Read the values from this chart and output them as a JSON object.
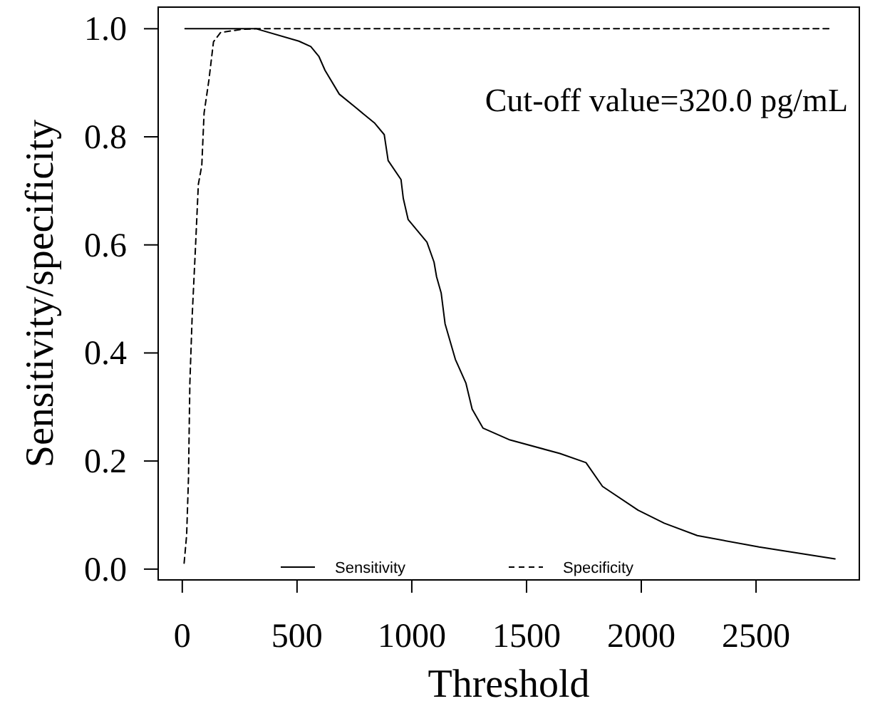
{
  "chart_data": {
    "type": "line",
    "xlabel": "Threshold",
    "ylabel": "Sensitivity/specificity",
    "annotations": [
      "Cut-off value=320.0 pg/mL"
    ],
    "xlim": [
      -105,
      2950
    ],
    "ylim": [
      -0.02,
      1.04
    ],
    "xticks": [
      0,
      500,
      1000,
      1500,
      2000,
      2500
    ],
    "yticks": [
      {
        "value": 0,
        "label": "0.0"
      },
      {
        "value": 0.2,
        "label": "0.2"
      },
      {
        "value": 0.4,
        "label": "0.4"
      },
      {
        "value": 0.6,
        "label": "0.6"
      },
      {
        "value": 0.8,
        "label": "0.8"
      },
      {
        "value": 1,
        "label": "1.0"
      }
    ],
    "grid": false,
    "legend": "bottom",
    "series": [
      {
        "name": "Sensitivity",
        "color": "#000000",
        "line_style": "solid",
        "x": [
          12,
          322,
          508,
          560,
          595,
          622,
          684,
          756,
          839,
          880,
          897,
          953,
          963,
          984,
          1066,
          1097,
          1108,
          1128,
          1145,
          1190,
          1236,
          1263,
          1310,
          1428,
          1645,
          1759,
          1831,
          1986,
          2100,
          2244,
          2513,
          2844
        ],
        "values": [
          1.0,
          1.0,
          0.977,
          0.967,
          0.949,
          0.923,
          0.879,
          0.854,
          0.825,
          0.804,
          0.756,
          0.721,
          0.686,
          0.647,
          0.605,
          0.568,
          0.541,
          0.511,
          0.454,
          0.388,
          0.344,
          0.296,
          0.261,
          0.239,
          0.214,
          0.197,
          0.153,
          0.109,
          0.085,
          0.062,
          0.041,
          0.019
        ]
      },
      {
        "name": "Specificity",
        "color": "#000000",
        "line_style": "dashed",
        "x": [
          8,
          19,
          27,
          33,
          43,
          58,
          70,
          85,
          95,
          116,
          136,
          167,
          260,
          322,
          2823
        ],
        "values": [
          0.011,
          0.063,
          0.168,
          0.344,
          0.467,
          0.6,
          0.712,
          0.747,
          0.844,
          0.905,
          0.976,
          0.993,
          0.999,
          1.0,
          1.0
        ]
      }
    ]
  }
}
